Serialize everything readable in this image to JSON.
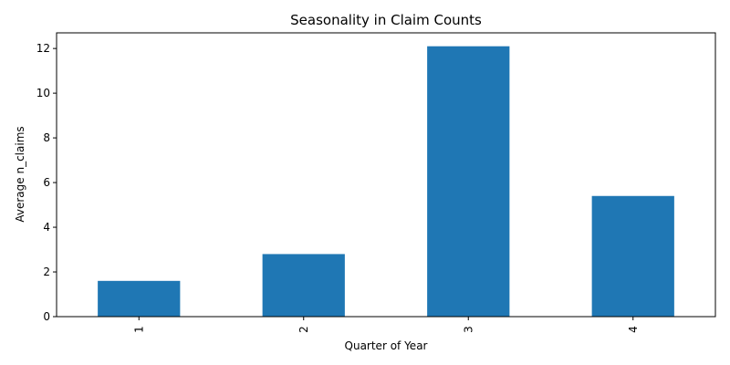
{
  "chart_data": {
    "type": "bar",
    "title": "Seasonality in Claim Counts",
    "xlabel": "Quarter of Year",
    "ylabel": "Average n_claims",
    "categories": [
      "1",
      "2",
      "3",
      "4"
    ],
    "values": [
      1.6,
      2.8,
      12.1,
      5.4
    ],
    "ylim": [
      0,
      12.7
    ],
    "yticks": [
      0,
      2,
      4,
      6,
      8,
      10,
      12
    ],
    "bar_color": "#1f77b4",
    "grid": false,
    "legend": "none"
  }
}
